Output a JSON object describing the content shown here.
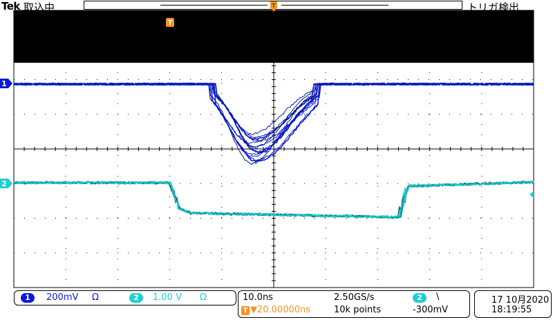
{
  "header": {
    "brand": "Tek",
    "acq_status": "取込中",
    "trigger_status": "トリガ検出"
  },
  "markers": {
    "trigger_pos": "T",
    "ch1": "1",
    "ch2": "2"
  },
  "channels": [
    {
      "id": "1",
      "scale": "200mV",
      "coupling": "Ω",
      "color": "#0a1ad6"
    },
    {
      "id": "2",
      "scale": "1.00 V",
      "coupling": "Ω",
      "color": "#1ccfd6"
    }
  ],
  "timebase": {
    "scale": "10.0ns",
    "sample_rate": "2.50GS/s",
    "record_length": "10k points",
    "trigger_delay": "▼20.00000ns",
    "trigger_icon": "T→"
  },
  "trigger": {
    "source": "2",
    "slope": "\\",
    "level": "-300mV"
  },
  "datetime": {
    "date": "17 10月2020",
    "time": "18:19:55"
  },
  "colors": {
    "ch1": "#0a1ad6",
    "ch2": "#1ccfd6",
    "trigger": "#f7931e",
    "grid": "#000000"
  }
}
